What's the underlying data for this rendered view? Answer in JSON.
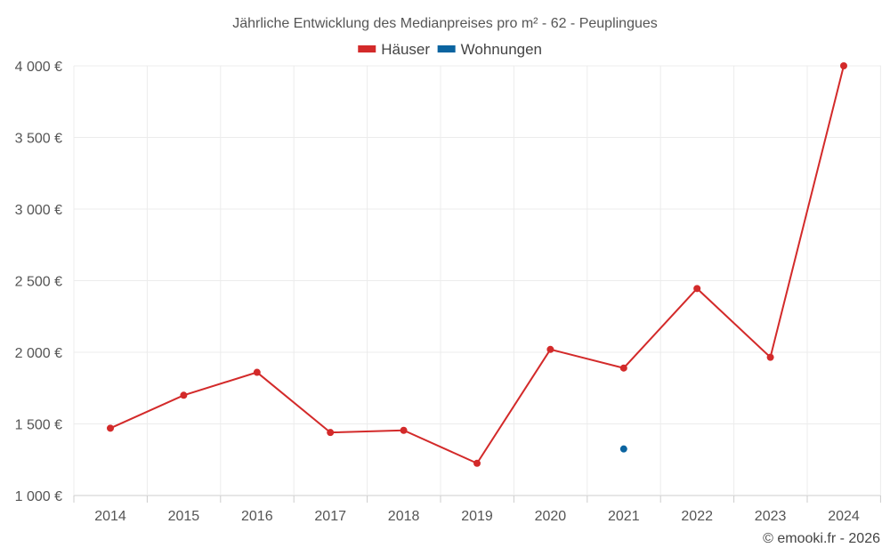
{
  "chart_data": {
    "type": "line",
    "title": "Jährliche Entwicklung des Medianpreises pro m² - 62 - Peuplingues",
    "categories": [
      "2014",
      "2015",
      "2016",
      "2017",
      "2018",
      "2019",
      "2020",
      "2021",
      "2022",
      "2023",
      "2024"
    ],
    "series": [
      {
        "name": "Häuser",
        "color": "#d32a2a",
        "values": [
          1470,
          1700,
          1860,
          1440,
          1455,
          1225,
          2020,
          1890,
          2445,
          1965,
          4000
        ]
      },
      {
        "name": "Wohnungen",
        "color": "#0b64a0",
        "values": [
          null,
          null,
          null,
          null,
          null,
          null,
          null,
          1325,
          null,
          null,
          null
        ]
      }
    ],
    "ylim": [
      1000,
      4000
    ],
    "yticks": [
      1000,
      1500,
      2000,
      2500,
      3000,
      3500,
      4000
    ],
    "ytick_labels": [
      "1 000 €",
      "1 500 €",
      "2 000 €",
      "2 500 €",
      "3 000 €",
      "3 500 €",
      "4 000 €"
    ],
    "grid": true,
    "legend_position": "top-center"
  },
  "credit": "© emooki.fr - 2026"
}
